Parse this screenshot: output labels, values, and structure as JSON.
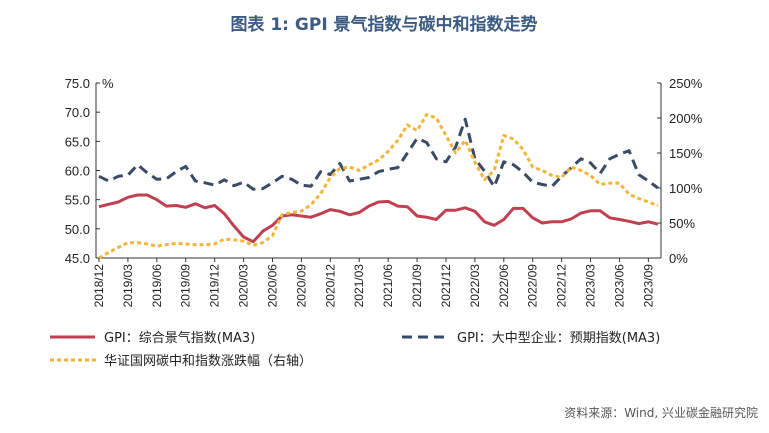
{
  "title": "图表 1:   GPI 景气指数与碳中和指数走势",
  "source": "资料来源：Wind, 兴业碳金融研究院",
  "colors": {
    "title": "#3d5a80",
    "gpi_composite": "#c0404f",
    "gpi_large_mid": "#3b4a66",
    "carbon_index": "#f2b53a"
  },
  "chart_data": {
    "type": "line",
    "title": "图表 1:   GPI 景气指数与碳中和指数走势",
    "xlabel": "",
    "ylabel_left": "%",
    "ylabel_right": "",
    "ylim_left": [
      45,
      75
    ],
    "ylim_right": [
      0,
      250
    ],
    "yticks_left": [
      "45.0",
      "50.0",
      "55.0",
      "60.0",
      "65.0",
      "70.0",
      "75.0"
    ],
    "yticks_right": [
      "0%",
      "50%",
      "100%",
      "150%",
      "200%",
      "250%"
    ],
    "grid": false,
    "legend_placement": "bottom",
    "x": [
      "2018/12",
      "2019/01",
      "2019/02",
      "2019/03",
      "2019/04",
      "2019/05",
      "2019/06",
      "2019/07",
      "2019/08",
      "2019/09",
      "2019/10",
      "2019/11",
      "2019/12",
      "2020/01",
      "2020/02",
      "2020/03",
      "2020/04",
      "2020/05",
      "2020/06",
      "2020/07",
      "2020/08",
      "2020/09",
      "2020/10",
      "2020/11",
      "2020/12",
      "2021/01",
      "2021/02",
      "2021/03",
      "2021/04",
      "2021/05",
      "2021/06",
      "2021/07",
      "2021/08",
      "2021/09",
      "2021/10",
      "2021/11",
      "2021/12",
      "2022/01",
      "2022/02",
      "2022/03",
      "2022/04",
      "2022/05",
      "2022/06",
      "2022/07",
      "2022/08",
      "2022/09",
      "2022/10",
      "2022/11",
      "2022/12",
      "2023/01",
      "2023/02",
      "2023/03",
      "2023/04",
      "2023/05",
      "2023/06",
      "2023/07",
      "2023/08",
      "2023/09",
      "2023/10"
    ],
    "xtick_labels": [
      "2018/12",
      "2019/03",
      "2019/06",
      "2019/09",
      "2019/12",
      "2020/03",
      "2020/06",
      "2020/09",
      "2020/12",
      "2021/03",
      "2021/06",
      "2021/09",
      "2021/12",
      "2022/03",
      "2022/06",
      "2022/09",
      "2022/12",
      "2023/03",
      "2023/06",
      "2023/09"
    ],
    "series": [
      {
        "name": "GPI：综合景气指数(MA3)",
        "axis": "left",
        "style": "solid",
        "values": [
          53.8,
          54.2,
          54.6,
          55.4,
          55.8,
          55.8,
          55.0,
          53.9,
          54.0,
          53.7,
          54.3,
          53.6,
          54.0,
          52.6,
          50.5,
          48.6,
          47.8,
          49.6,
          50.6,
          52.2,
          52.4,
          52.2,
          52.0,
          52.6,
          53.3,
          53.0,
          52.4,
          52.8,
          53.9,
          54.6,
          54.7,
          53.9,
          53.8,
          52.2,
          52.0,
          51.6,
          53.2,
          53.2,
          53.6,
          53.0,
          51.2,
          50.6,
          51.6,
          53.5,
          53.5,
          51.9,
          51.0,
          51.2,
          51.2,
          51.7,
          52.7,
          53.1,
          53.1,
          51.9,
          51.6,
          51.3,
          50.9,
          51.2,
          50.8
        ]
      },
      {
        "name": "GPI：大中型企业：预期指数(MA3)",
        "axis": "left",
        "style": "dashed",
        "values": [
          59.0,
          58.2,
          59.0,
          59.2,
          61.0,
          59.6,
          58.5,
          58.6,
          59.8,
          60.7,
          58.2,
          57.9,
          57.5,
          58.4,
          57.4,
          58.0,
          56.8,
          56.9,
          57.9,
          59.0,
          58.5,
          57.5,
          57.3,
          59.8,
          59.3,
          61.2,
          58.2,
          58.5,
          58.8,
          59.8,
          60.2,
          60.5,
          63.0,
          65.5,
          64.8,
          62.0,
          61.5,
          64.0,
          68.8,
          62.0,
          59.9,
          57.2,
          61.5,
          61.0,
          59.7,
          58.0,
          57.6,
          57.3,
          59.0,
          60.5,
          62.0,
          61.3,
          59.5,
          62.0,
          62.8,
          63.4,
          59.3,
          58.2,
          57.0
        ]
      },
      {
        "name": "华证国网碳中和指数涨跌幅（右轴）",
        "axis": "right",
        "style": "dotted",
        "values": [
          0,
          8,
          15,
          22,
          22,
          20,
          17,
          19,
          21,
          20,
          19,
          19,
          20,
          27,
          26,
          24,
          18,
          22,
          32,
          62,
          65,
          67,
          76,
          92,
          115,
          128,
          130,
          125,
          133,
          140,
          152,
          168,
          190,
          182,
          205,
          200,
          175,
          150,
          168,
          137,
          112,
          125,
          175,
          170,
          155,
          130,
          125,
          118,
          115,
          130,
          125,
          118,
          105,
          107,
          107,
          91,
          85,
          80,
          75
        ]
      }
    ]
  }
}
